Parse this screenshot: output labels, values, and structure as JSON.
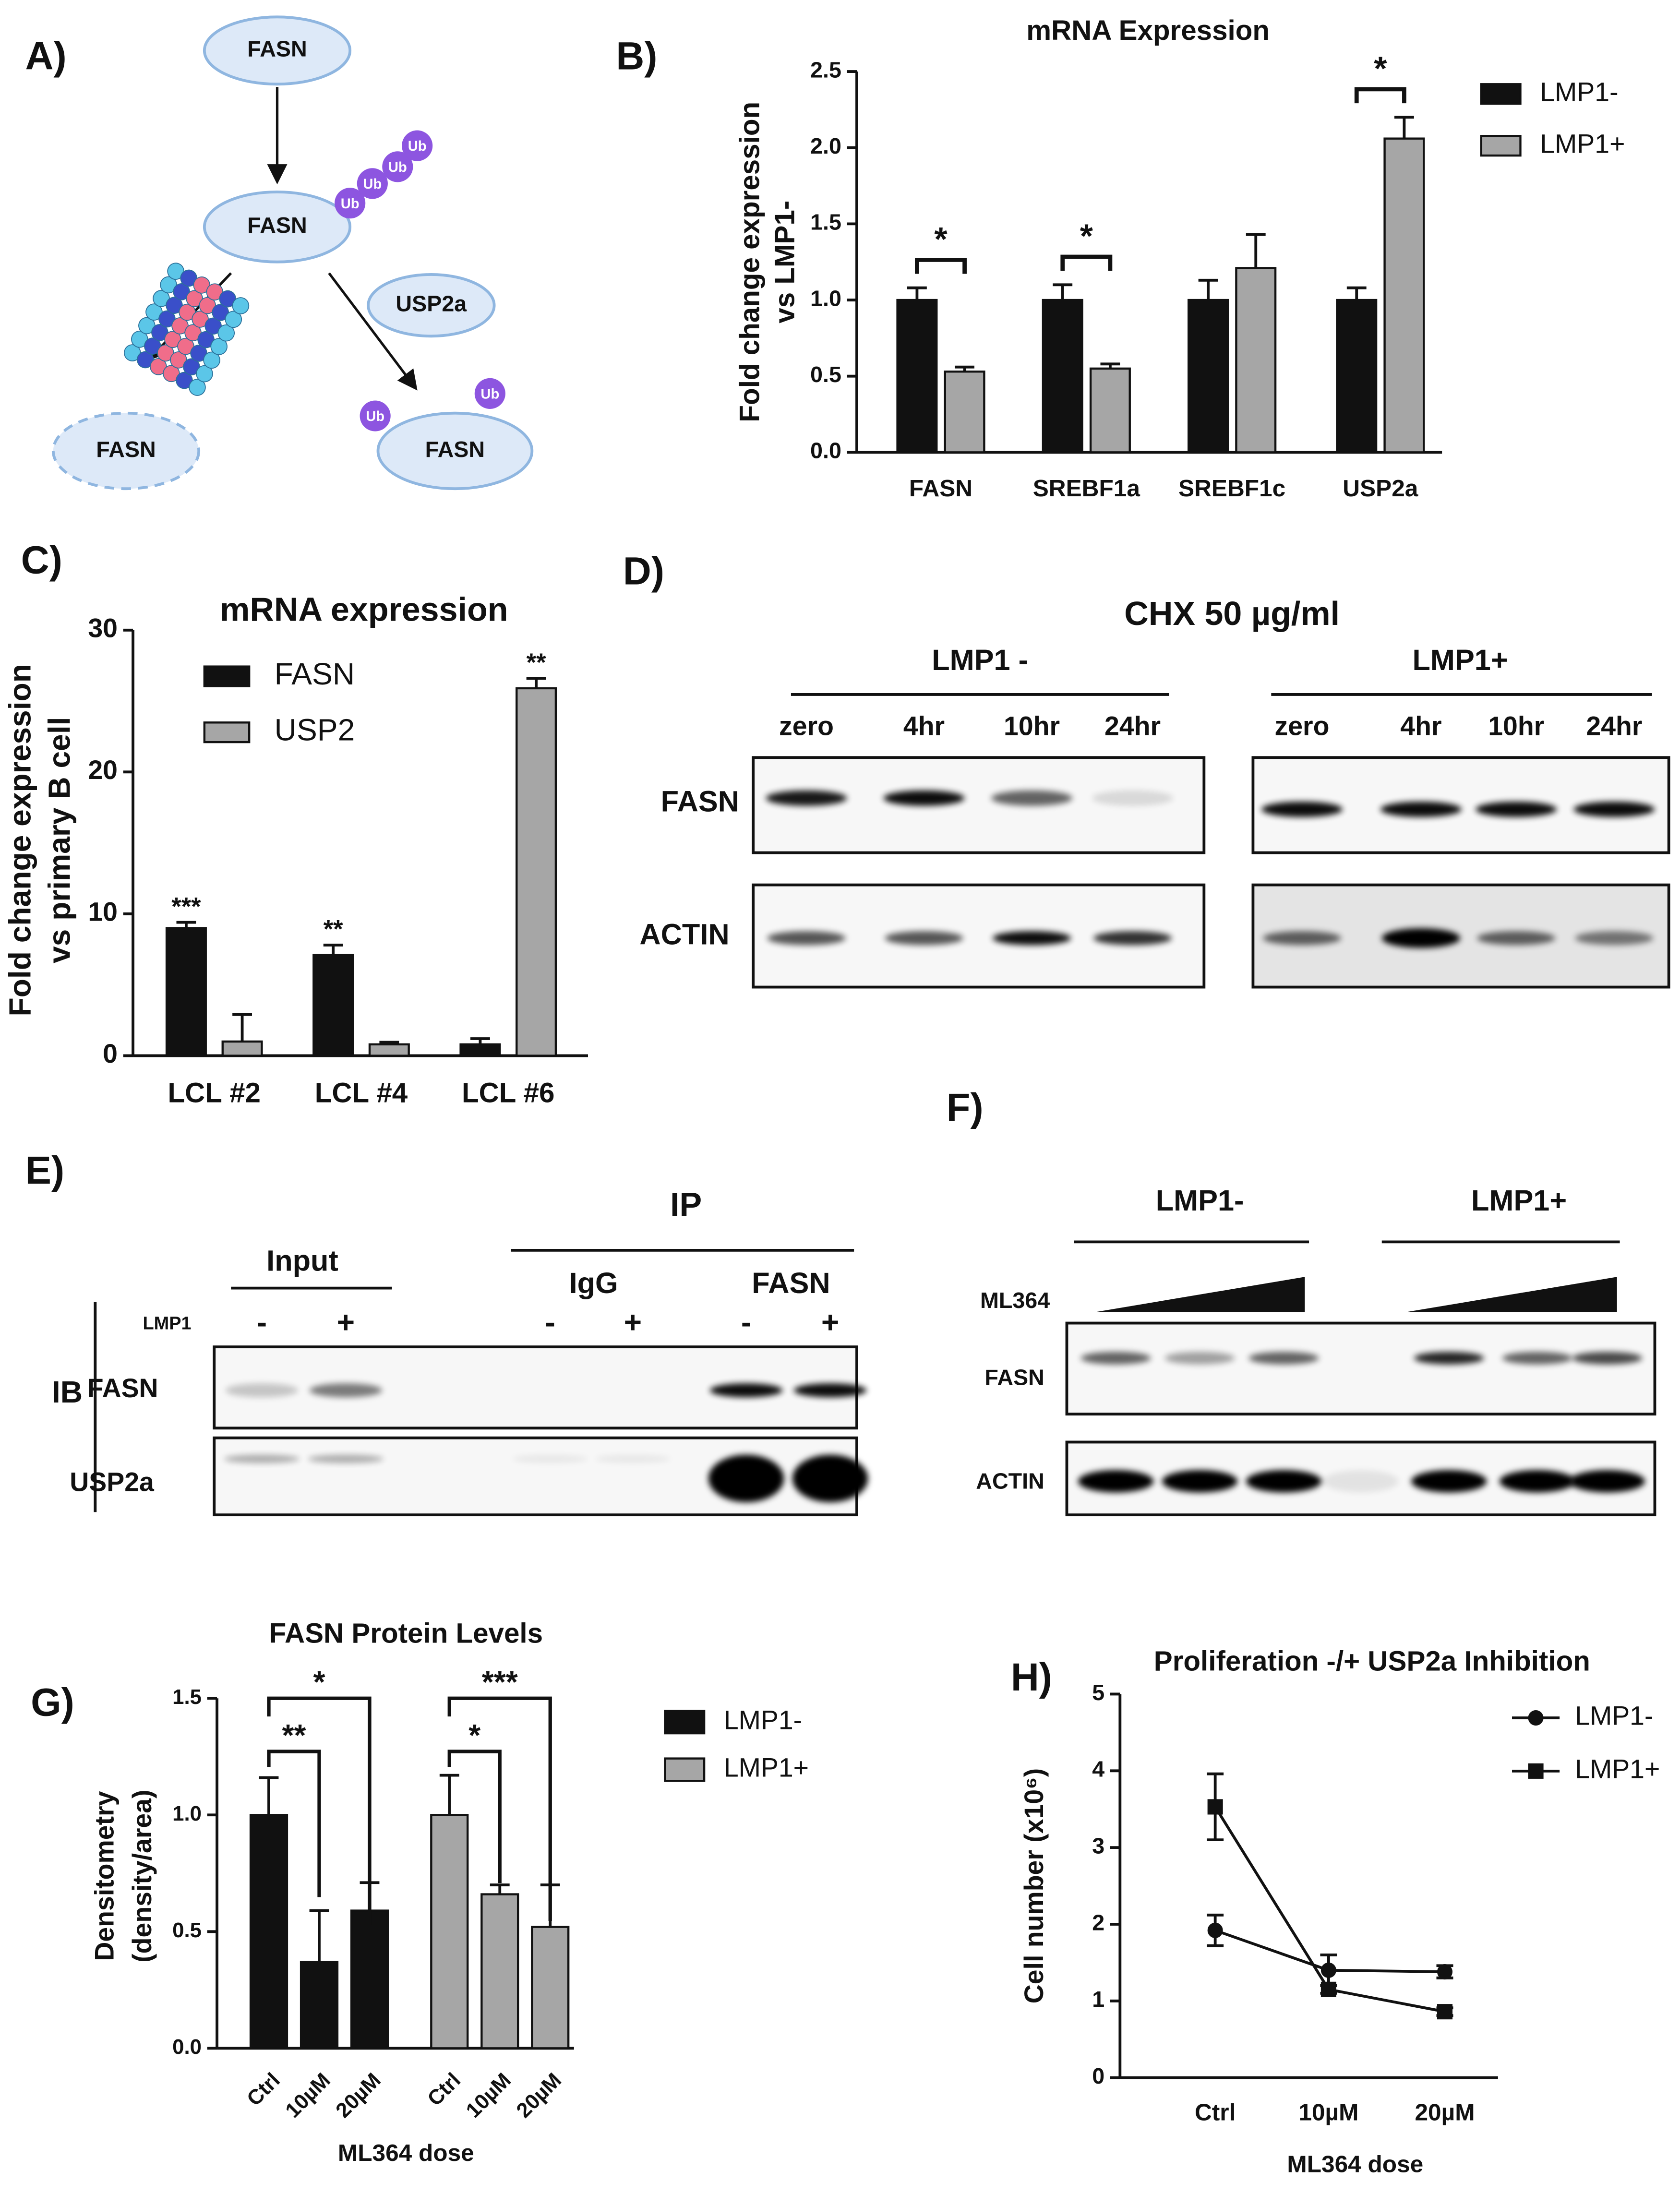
{
  "panel_labels": [
    "A)",
    "B)",
    "C)",
    "D)",
    "E)",
    "F)",
    "G)",
    "H)"
  ],
  "diagram": {
    "nodes": [
      "FASN",
      "FASN",
      "USP2a",
      "FASN",
      "FASN"
    ],
    "ub": [
      "Ub",
      "Ub",
      "Ub",
      "Ub",
      "Ub",
      "Ub"
    ]
  },
  "chart_data": [
    {
      "type": "bar",
      "title": "mRNA Expression",
      "y_label": [
        "Fold change expression",
        "vs LMP1-"
      ],
      "categories": [
        "FASN",
        "SREBF1a",
        "SREBF1c",
        "USP2a"
      ],
      "series": [
        {
          "name": "LMP1-",
          "color": "#111111",
          "values": [
            1.0,
            1.0,
            1.0,
            1.0
          ],
          "errors": [
            0.08,
            0.1,
            0.13,
            0.08
          ]
        },
        {
          "name": "LMP1+",
          "color": "#a6a6a6",
          "values": [
            0.53,
            0.55,
            1.21,
            2.06
          ],
          "errors": [
            0.03,
            0.03,
            0.22,
            0.14
          ]
        }
      ],
      "significance": [
        "*",
        "*",
        null,
        "*"
      ],
      "ylim": [
        0,
        2.5
      ],
      "yticks": [
        {
          "value": 0,
          "label": "0.0"
        },
        0.5,
        {
          "value": 1,
          "label": "1.0"
        },
        1.5,
        {
          "value": 2,
          "label": "2.0"
        },
        2.5
      ],
      "legend": "right"
    },
    {
      "type": "bar",
      "title": "mRNA expression",
      "y_label": [
        "Fold change expression",
        "vs primary B cell"
      ],
      "categories": [
        "LCL #2",
        "LCL #4",
        "LCL #6"
      ],
      "series": [
        {
          "name": "FASN",
          "color": "#111111",
          "values": [
            9.0,
            7.1,
            0.8
          ],
          "errors": [
            0.4,
            0.7,
            0.4
          ],
          "significance": [
            "***",
            "**",
            null
          ]
        },
        {
          "name": "USP2",
          "color": "#a6a6a6",
          "values": [
            1.0,
            0.8,
            25.9
          ],
          "errors": [
            1.9,
            0.15,
            0.7
          ],
          "significance": [
            null,
            null,
            "**"
          ]
        }
      ],
      "ylim": [
        0,
        30
      ],
      "yticks": [
        0,
        10,
        20,
        30
      ],
      "legend": "upper left"
    },
    {
      "type": "bar",
      "title": "FASN Protein Levels",
      "y_label": [
        "Densitometry",
        "(density/area)"
      ],
      "x_label": "ML364 dose",
      "categories": [
        "Ctrl",
        "10µM",
        "20µM",
        "Ctrl",
        "10µM",
        "20µM"
      ],
      "series": [
        {
          "name": "LMP1-",
          "color": "#111111",
          "values": [
            1.0,
            0.37,
            0.59,
            null,
            null,
            null
          ],
          "errors": [
            0.16,
            0.22,
            0.12,
            null,
            null,
            null
          ]
        },
        {
          "name": "LMP1+",
          "color": "#a6a6a6",
          "values": [
            null,
            null,
            null,
            1.0,
            0.66,
            0.52
          ],
          "errors": [
            null,
            null,
            null,
            0.17,
            0.04,
            0.18
          ]
        }
      ],
      "brackets": [
        "**",
        "*",
        "*",
        "***"
      ],
      "ylim": [
        0,
        1.5
      ],
      "yticks": [
        {
          "value": 0,
          "label": "0.0"
        },
        0.5,
        {
          "value": 1,
          "label": "1.0"
        },
        1.5
      ],
      "legend": "right"
    },
    {
      "type": "line",
      "title": "Proliferation -/+ USP2a Inhibition",
      "y_label": [
        "Cell number (x10⁶)"
      ],
      "x_label": "ML364 dose",
      "categories": [
        "Ctrl",
        "10µM",
        "20µM"
      ],
      "series": [
        {
          "name": "LMP1-",
          "color": "#111111",
          "marker": "circle",
          "values": [
            1.92,
            1.4,
            1.38
          ],
          "errors": [
            0.2,
            0.2,
            0.08
          ]
        },
        {
          "name": "LMP1+",
          "color": "#111111",
          "marker": "square",
          "values": [
            3.53,
            1.15,
            0.86
          ],
          "errors": [
            0.43,
            0.05,
            0.05
          ]
        }
      ],
      "ylim": [
        0,
        5
      ],
      "yticks": [
        0,
        1,
        2,
        3,
        4,
        5
      ],
      "legend": "right"
    }
  ],
  "blot_d": {
    "title": "CHX 50 µg/ml",
    "groups": [
      "LMP1 -",
      "LMP1+"
    ],
    "lanes": [
      "zero",
      "4hr",
      "10hr",
      "24hr",
      "zero",
      "4hr",
      "10hr",
      "24hr"
    ],
    "rows": [
      "FASN",
      "ACTIN"
    ]
  },
  "blot_e": {
    "ip": "IP",
    "input": "Input",
    "subgroups": [
      "IgG",
      "FASN"
    ],
    "condition": "LMP1",
    "signs": [
      "-",
      "+",
      "-",
      "+",
      "-",
      "+"
    ],
    "ib": "IB",
    "rows": [
      "FASN",
      "USP2a"
    ]
  },
  "blot_f": {
    "groups": [
      "LMP1-",
      "LMP1+"
    ],
    "treatment": "ML364",
    "rows": [
      "FASN",
      "ACTIN"
    ]
  }
}
